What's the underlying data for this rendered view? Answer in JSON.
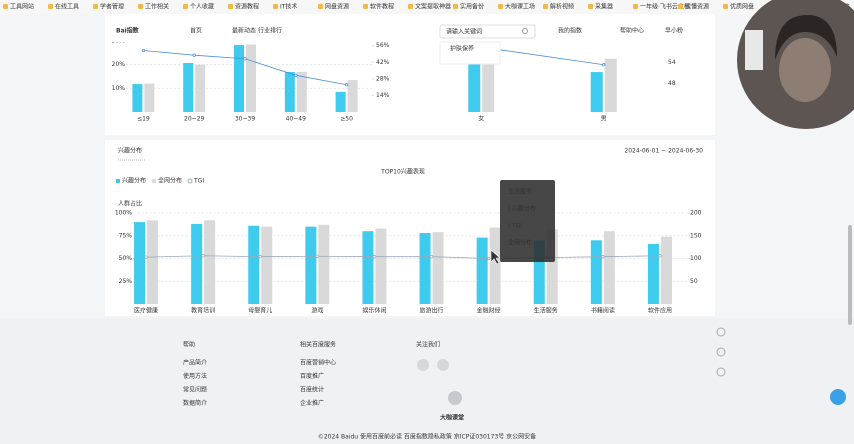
{
  "bookmarks": [
    "工具网站",
    "在线工具",
    "学者管理",
    "工作相关",
    "个人收藏",
    "资源教程",
    "IT技术",
    "网盘资源",
    "软件教程",
    "文案提取神器",
    "实用备份",
    "大咖课工场",
    "解析视频",
    "采集器",
    "一年级·飞书云文档",
    "读懂资源",
    "优质网盘",
    "小米云盘",
    "其他收藏夹"
  ],
  "header": {
    "logo": "Bai指数",
    "nav": [
      "首页",
      "最新动态",
      "行业排行"
    ],
    "search_placeholder": "请输入关键词",
    "suggest": "护肤保养",
    "buttons": [
      "我的指数",
      "帮助中心",
      "早小粉"
    ]
  },
  "age_chart": {
    "type": "bar",
    "categories": [
      "≤19",
      "20~29",
      "30~39",
      "40~49",
      "≥50"
    ],
    "series": [
      {
        "color": "#3fcbee",
        "values": [
          11.8,
          20.7,
          28.3,
          16.9,
          8.5
        ]
      },
      {
        "color": "#d9d9d9",
        "values": [
          12,
          20,
          28.5,
          17,
          13.5
        ]
      },
      {
        "type": "line",
        "axis": "y2",
        "color": "#4a90d9",
        "values": [
          52,
          48,
          45,
          31,
          23
        ]
      }
    ],
    "ylim": [
      0,
      30
    ],
    "yticks": [
      {
        "value": 10,
        "label": "10%"
      },
      {
        "value": 20,
        "label": "20%"
      },
      {
        "value": 30,
        "label": "30%"
      }
    ],
    "y2lim": [
      0,
      60
    ],
    "y2ticks": [
      {
        "value": 14,
        "label": "14%"
      },
      {
        "value": 28,
        "label": "28%"
      },
      {
        "value": 42,
        "label": "42%"
      },
      {
        "value": 56,
        "label": "56%"
      }
    ]
  },
  "gender_chart": {
    "type": "bar",
    "categories": [
      "女",
      "男"
    ],
    "series": [
      {
        "color": "#3fcbee",
        "values": [
          72,
          45
        ]
      },
      {
        "color": "#d9d9d9",
        "values": [
          74,
          60
        ]
      },
      {
        "type": "line",
        "axis": "y2",
        "color": "#4a90d9",
        "values": [
          58.3,
          53.3
        ]
      }
    ],
    "ylim": [
      0,
      80
    ],
    "y2lim": [
      40,
      60
    ],
    "y2ticks": [
      48,
      54
    ]
  },
  "interest": {
    "title": "兴趣分布",
    "date_range": "2024-06-01 ~ 2024-06-30",
    "chart": {
      "type": "bar",
      "title": "TOP10兴趣表现",
      "y_label": "人群占比",
      "categories": [
        "医疗健康",
        "教育培训",
        "母婴育儿",
        "游戏",
        "娱乐休闲",
        "旅游出行",
        "金融财经",
        "生活服务",
        "书籍阅读",
        "软件应用"
      ],
      "series": [
        {
          "name": "兴趣分布",
          "color": "#3fcbee",
          "values": [
            90,
            88,
            86,
            85,
            80,
            78,
            73,
            70,
            70,
            66
          ]
        },
        {
          "name": "全网分布",
          "color": "#d9d9d9",
          "values": [
            92,
            92,
            85,
            87,
            83,
            79,
            84,
            82,
            80,
            74
          ]
        },
        {
          "name": "TGI",
          "type": "line",
          "axis": "y2",
          "color": "#9aa9b8",
          "values": [
            103,
            106,
            104,
            105,
            104,
            104,
            100,
            102,
            104,
            106
          ]
        }
      ],
      "ylim": [
        0,
        100
      ],
      "yticks": [
        {
          "value": 25,
          "label": "25%"
        },
        {
          "value": 50,
          "label": "50%"
        },
        {
          "value": 75,
          "label": "75%"
        },
        {
          "value": 100,
          "label": "100%"
        }
      ],
      "y2lim": [
        0,
        200
      ],
      "y2ticks": [
        50,
        100,
        150,
        200
      ]
    },
    "tooltip": [
      "生活服务",
      "| 兴趣分布",
      "| TGI",
      "全网分布"
    ]
  },
  "footer": {
    "columns": [
      {
        "title": "帮助",
        "links": [
          "产品简介",
          "使用方法",
          "常见问题",
          "数据简介"
        ]
      },
      {
        "title": "相关百度服务",
        "links": [
          "百度营销中心",
          "百度推广",
          "百度统计",
          "企业推广"
        ]
      },
      {
        "title": "关注我们",
        "links": []
      }
    ],
    "copyright": "©2024 Baidu 使用百度前必读 百度指数隐私政策 京ICP证030173号 京公网安备"
  },
  "watermark": "大咖课堂"
}
